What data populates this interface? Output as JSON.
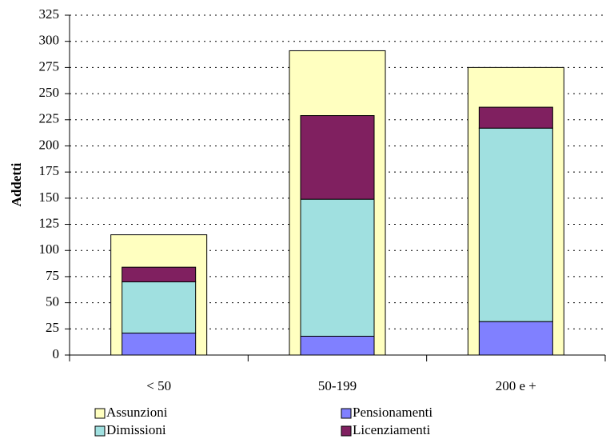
{
  "chart_data": {
    "type": "bar",
    "y_label": "Addetti",
    "categories": [
      "< 50",
      "50-199",
      "200 e +"
    ],
    "series": [
      {
        "name": "Assunzioni",
        "color": "#ffffc0",
        "values": [
          115,
          291,
          275
        ]
      },
      {
        "name": "Pensionamenti",
        "color": "#8080ff",
        "values": [
          21,
          18,
          32
        ]
      },
      {
        "name": "Dimissioni",
        "color": "#a0e0e0",
        "values": [
          49,
          131,
          185
        ]
      },
      {
        "name": "Licenziamenti",
        "color": "#802060",
        "values": [
          14,
          80,
          20
        ]
      }
    ],
    "ylim": [
      0,
      325
    ],
    "yticks": [
      0,
      25,
      50,
      75,
      100,
      125,
      150,
      175,
      200,
      225,
      250,
      275,
      300,
      325
    ],
    "grid": true
  }
}
